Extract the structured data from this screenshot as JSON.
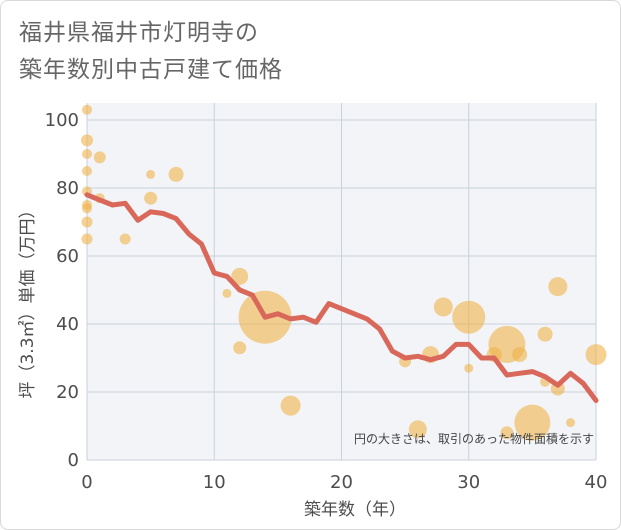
{
  "chart_data": {
    "type": "scatter",
    "title_lines": [
      "福井県福井市灯明寺の",
      "築年数別中古戸建て価格"
    ],
    "xlabel": "築年数（年）",
    "ylabel": "坪（3.3㎡）単価（万円）",
    "xlim": [
      0,
      40
    ],
    "ylim": [
      0,
      105
    ],
    "xticks": [
      "0",
      "10",
      "20",
      "30",
      "40"
    ],
    "yticks": [
      "0",
      "20",
      "40",
      "60",
      "80",
      "100"
    ],
    "grid": true,
    "note": "円の大きさは、取引のあった物件面積を示す",
    "colors": {
      "bubble": "#f0b24a",
      "line": "#d9685a",
      "plot_bg": "#f2f4f7",
      "grid": "#c9d1db"
    },
    "points": [
      {
        "x": 0,
        "y": 103,
        "s": 1
      },
      {
        "x": 0,
        "y": 94,
        "s": 1.2
      },
      {
        "x": 0,
        "y": 90,
        "s": 1
      },
      {
        "x": 0,
        "y": 85,
        "s": 1
      },
      {
        "x": 0,
        "y": 79,
        "s": 1
      },
      {
        "x": 0,
        "y": 75,
        "s": 1
      },
      {
        "x": 0,
        "y": 74,
        "s": 1
      },
      {
        "x": 0,
        "y": 70,
        "s": 1.1
      },
      {
        "x": 0,
        "y": 65,
        "s": 1.1
      },
      {
        "x": 1,
        "y": 89,
        "s": 1.2
      },
      {
        "x": 1,
        "y": 77,
        "s": 1
      },
      {
        "x": 3,
        "y": 65,
        "s": 1.1
      },
      {
        "x": 5,
        "y": 84,
        "s": 0.9
      },
      {
        "x": 5,
        "y": 77,
        "s": 1.3
      },
      {
        "x": 7,
        "y": 84,
        "s": 1.5
      },
      {
        "x": 11,
        "y": 49,
        "s": 0.9
      },
      {
        "x": 12,
        "y": 54,
        "s": 1.7
      },
      {
        "x": 12,
        "y": 33,
        "s": 1.3
      },
      {
        "x": 14,
        "y": 42,
        "s": 5.3
      },
      {
        "x": 16,
        "y": 16,
        "s": 2
      },
      {
        "x": 25,
        "y": 29,
        "s": 1.2
      },
      {
        "x": 26,
        "y": 9,
        "s": 1.8
      },
      {
        "x": 27,
        "y": 31,
        "s": 1.7
      },
      {
        "x": 28,
        "y": 45,
        "s": 1.9
      },
      {
        "x": 30,
        "y": 42,
        "s": 3.3
      },
      {
        "x": 30,
        "y": 27,
        "s": 0.9
      },
      {
        "x": 32,
        "y": 31,
        "s": 1.5
      },
      {
        "x": 33,
        "y": 34,
        "s": 3.7
      },
      {
        "x": 33,
        "y": 8,
        "s": 1.3
      },
      {
        "x": 34,
        "y": 31,
        "s": 1.5
      },
      {
        "x": 35,
        "y": 11,
        "s": 3.6
      },
      {
        "x": 36,
        "y": 37,
        "s": 1.5
      },
      {
        "x": 36,
        "y": 23,
        "s": 1
      },
      {
        "x": 37,
        "y": 51,
        "s": 1.9
      },
      {
        "x": 37,
        "y": 21,
        "s": 1.4
      },
      {
        "x": 38,
        "y": 11,
        "s": 0.9
      },
      {
        "x": 40,
        "y": 31,
        "s": 2.1
      }
    ],
    "trend": {
      "x": [
        0,
        1,
        2,
        3,
        4,
        5,
        6,
        7,
        8,
        9,
        10,
        11,
        12,
        13,
        14,
        15,
        16,
        17,
        18,
        19,
        20,
        21,
        22,
        23,
        24,
        25,
        26,
        27,
        28,
        29,
        30,
        31,
        32,
        33,
        34,
        35,
        36,
        37,
        38,
        39,
        40
      ],
      "y": [
        78,
        76.5,
        75,
        75.5,
        70.5,
        73,
        72.5,
        71,
        66.5,
        63.5,
        55,
        54,
        50,
        48.5,
        42,
        43,
        41.5,
        42,
        40.5,
        46,
        44.5,
        43,
        41.5,
        38.5,
        32,
        30,
        30.5,
        29.5,
        30.5,
        34,
        34,
        30,
        30,
        25,
        25.5,
        26,
        24.5,
        22,
        25.5,
        22.5,
        17.5
      ]
    }
  }
}
